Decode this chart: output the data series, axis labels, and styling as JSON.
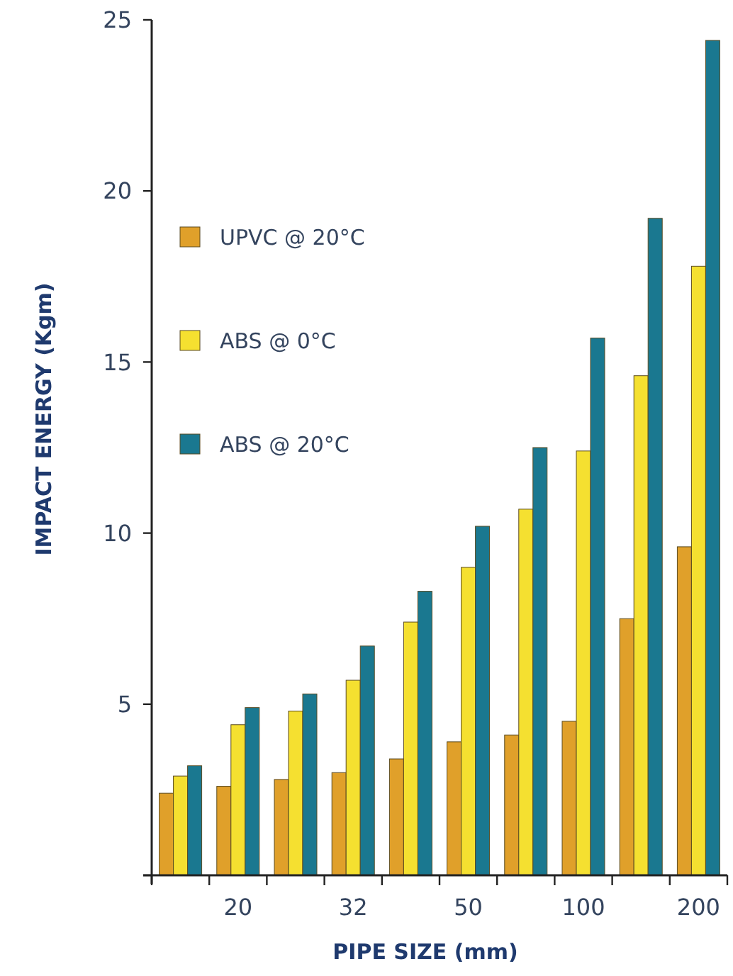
{
  "chart_data": {
    "type": "bar",
    "xlabel": "PIPE SIZE (mm)",
    "ylabel": "IMPACT ENERGY (Kgm)",
    "categories": [
      null,
      "20",
      null,
      "32",
      null,
      "50",
      null,
      "100",
      null,
      "200"
    ],
    "series": [
      {
        "name": "UPVC @ 20°C",
        "color": "#e0a02a",
        "values": [
          2.4,
          2.6,
          2.8,
          3.0,
          3.4,
          3.9,
          4.1,
          4.5,
          7.5,
          9.6
        ]
      },
      {
        "name": "ABS @ 0°C",
        "color": "#f5e030",
        "values": [
          2.9,
          4.4,
          4.8,
          5.7,
          7.4,
          9.0,
          10.7,
          12.4,
          14.6,
          17.8
        ]
      },
      {
        "name": "ABS @ 20°C",
        "color": "#1a7890",
        "values": [
          3.2,
          4.9,
          5.3,
          6.7,
          8.3,
          10.2,
          12.5,
          15.7,
          19.2,
          24.4
        ]
      }
    ],
    "ylim": [
      0,
      25
    ],
    "yticks": [
      {
        "value": 0,
        "label": null
      },
      5,
      10,
      15,
      20,
      25
    ],
    "legend": "top left",
    "grid": false
  }
}
